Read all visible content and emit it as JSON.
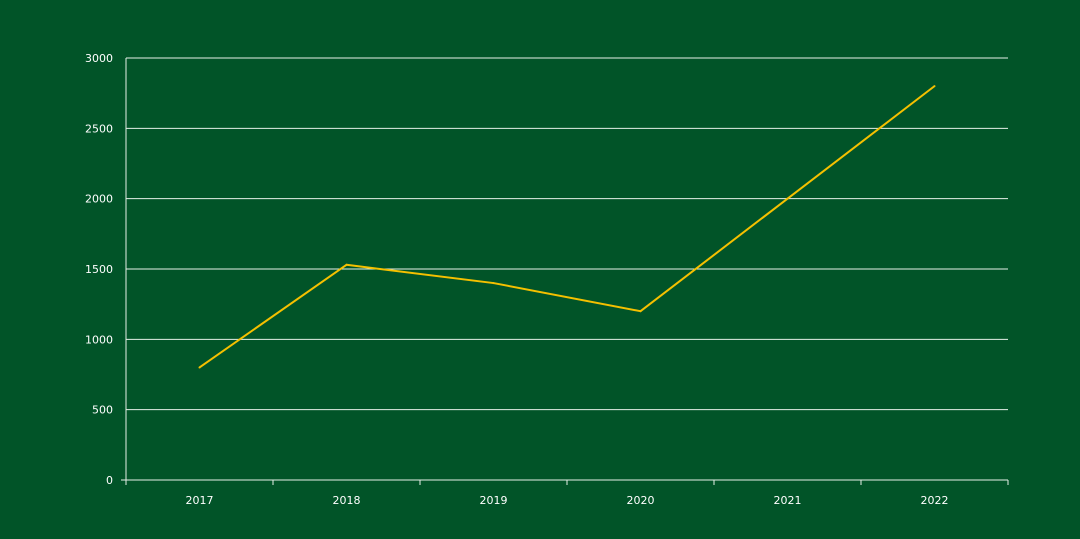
{
  "chart_data": {
    "type": "line",
    "title": "",
    "xlabel": "",
    "ylabel": "",
    "categories": [
      "2017",
      "2018",
      "2019",
      "2020",
      "2021",
      "2022"
    ],
    "series": [
      {
        "values": [
          800,
          1530,
          1400,
          1200,
          2000,
          2800
        ]
      }
    ],
    "ylim": [
      0,
      3000
    ],
    "yticks": [
      0,
      500,
      1000,
      1500,
      2000,
      2500,
      3000
    ],
    "grid": true,
    "legend": "none"
  },
  "colors": {
    "background": "#015428",
    "line": "#f5c000",
    "grid": "#e6efe8",
    "text": "#ffffff"
  }
}
